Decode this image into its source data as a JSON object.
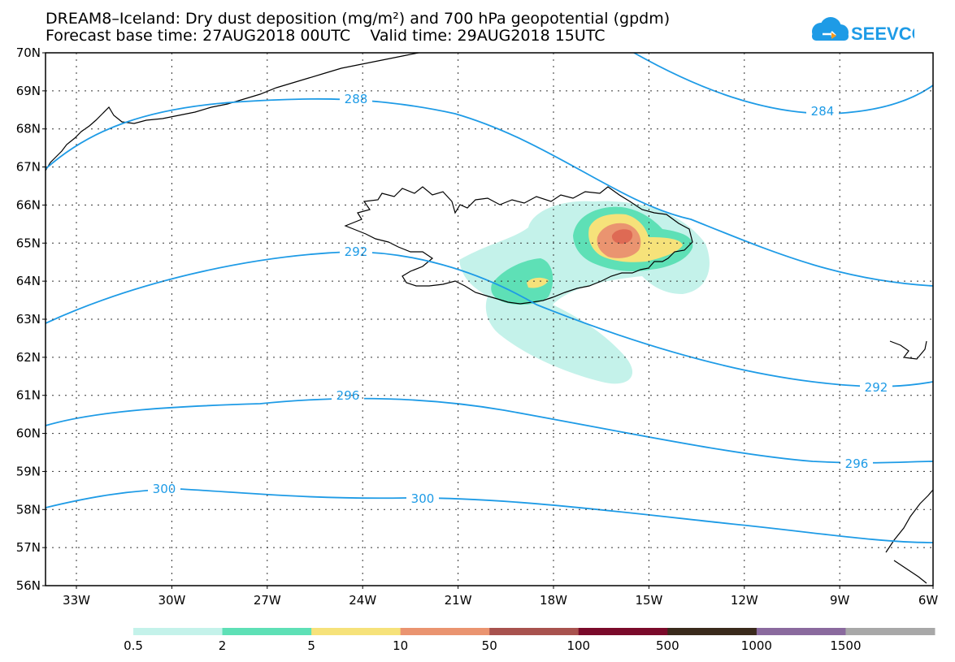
{
  "header": {
    "title_line1": "DREAM8–Iceland: Dry dust deposition (mg/m²) and 700 hPa geopotential (gpdm)",
    "title_line2": "Forecast base time: 27AUG2018 00UTC    Valid time: 29AUG2018 15UTC",
    "logo_text": "SEEVCCC"
  },
  "map": {
    "lat_labels": [
      "70N",
      "69N",
      "68N",
      "67N",
      "66N",
      "65N",
      "64N",
      "63N",
      "62N",
      "61N",
      "60N",
      "59N",
      "58N",
      "57N",
      "56N"
    ],
    "lon_labels": [
      "33W",
      "30W",
      "27W",
      "24W",
      "21W",
      "18W",
      "15W",
      "12W",
      "9W",
      "6W"
    ],
    "contour_labels": [
      "288",
      "284",
      "292",
      "292",
      "296",
      "296",
      "300",
      "300"
    ]
  },
  "colorbar": {
    "labels": [
      "0.5",
      "2",
      "5",
      "10",
      "50",
      "100",
      "500",
      "1000",
      "1500"
    ],
    "colors": [
      "#c4f2ea",
      "#5ee0b6",
      "#f6e27a",
      "#ea9470",
      "#a8524e",
      "#7a0a2a",
      "#3a2a1c",
      "#8a6a9e",
      "#a8a8a8"
    ]
  },
  "colors": {
    "contour": "#1e9be6",
    "coast": "#000000"
  }
}
